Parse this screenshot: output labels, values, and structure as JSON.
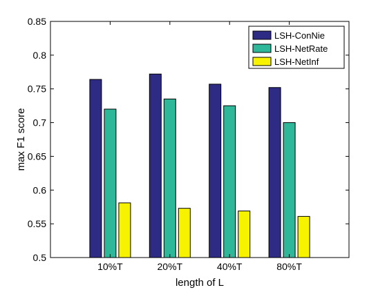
{
  "chart_data": {
    "type": "bar",
    "categories": [
      "10%T",
      "20%T",
      "40%T",
      "80%T"
    ],
    "series": [
      {
        "name": "LSH-ConNie",
        "color": "#2e2b85",
        "values": [
          0.764,
          0.772,
          0.757,
          0.752
        ]
      },
      {
        "name": "LSH-NetRate",
        "color": "#2fb79a",
        "values": [
          0.72,
          0.735,
          0.725,
          0.7
        ]
      },
      {
        "name": "LSH-NetInf",
        "color": "#f6f200",
        "values": [
          0.581,
          0.573,
          0.569,
          0.561
        ]
      }
    ],
    "xlabel": "length of L",
    "ylabel": "max F1 score",
    "ylim": [
      0.5,
      0.85
    ],
    "yticks": [
      "0.5",
      "0.55",
      "0.6",
      "0.65",
      "0.7",
      "0.75",
      "0.8",
      "0.85"
    ],
    "grid": false,
    "legend_position": "top-right"
  }
}
